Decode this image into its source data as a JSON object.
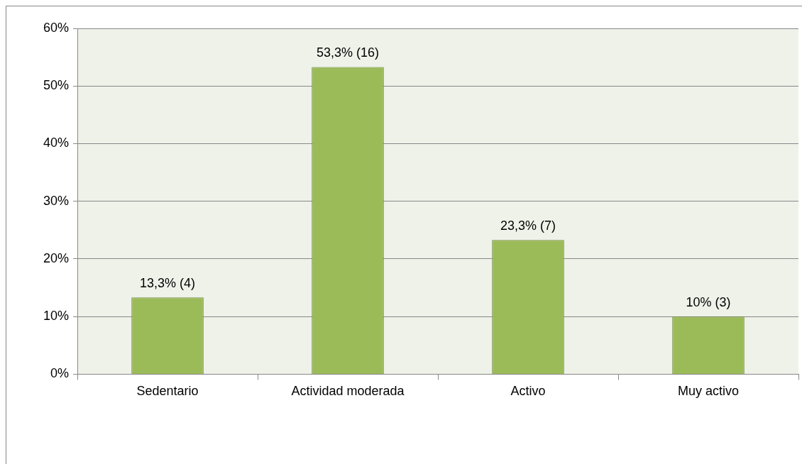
{
  "chart_data": {
    "type": "bar",
    "categories": [
      "Sedentario",
      "Actividad moderada",
      "Activo",
      "Muy activo"
    ],
    "values": [
      13.3,
      53.3,
      23.3,
      10
    ],
    "value_labels": [
      "13,3% (4)",
      "53,3% (16)",
      "23,3% (7)",
      "10% (3)"
    ],
    "color": "#9bbb59",
    "ylim": [
      0,
      60
    ],
    "yticks": [
      {
        "value": 0,
        "label": "0%"
      },
      {
        "value": 10,
        "label": "10%"
      },
      {
        "value": 20,
        "label": "20%"
      },
      {
        "value": 30,
        "label": "30%"
      },
      {
        "value": 40,
        "label": "40%"
      },
      {
        "value": 50,
        "label": "50%"
      },
      {
        "value": 60,
        "label": "60%"
      }
    ],
    "grid": "y",
    "legend": false
  }
}
